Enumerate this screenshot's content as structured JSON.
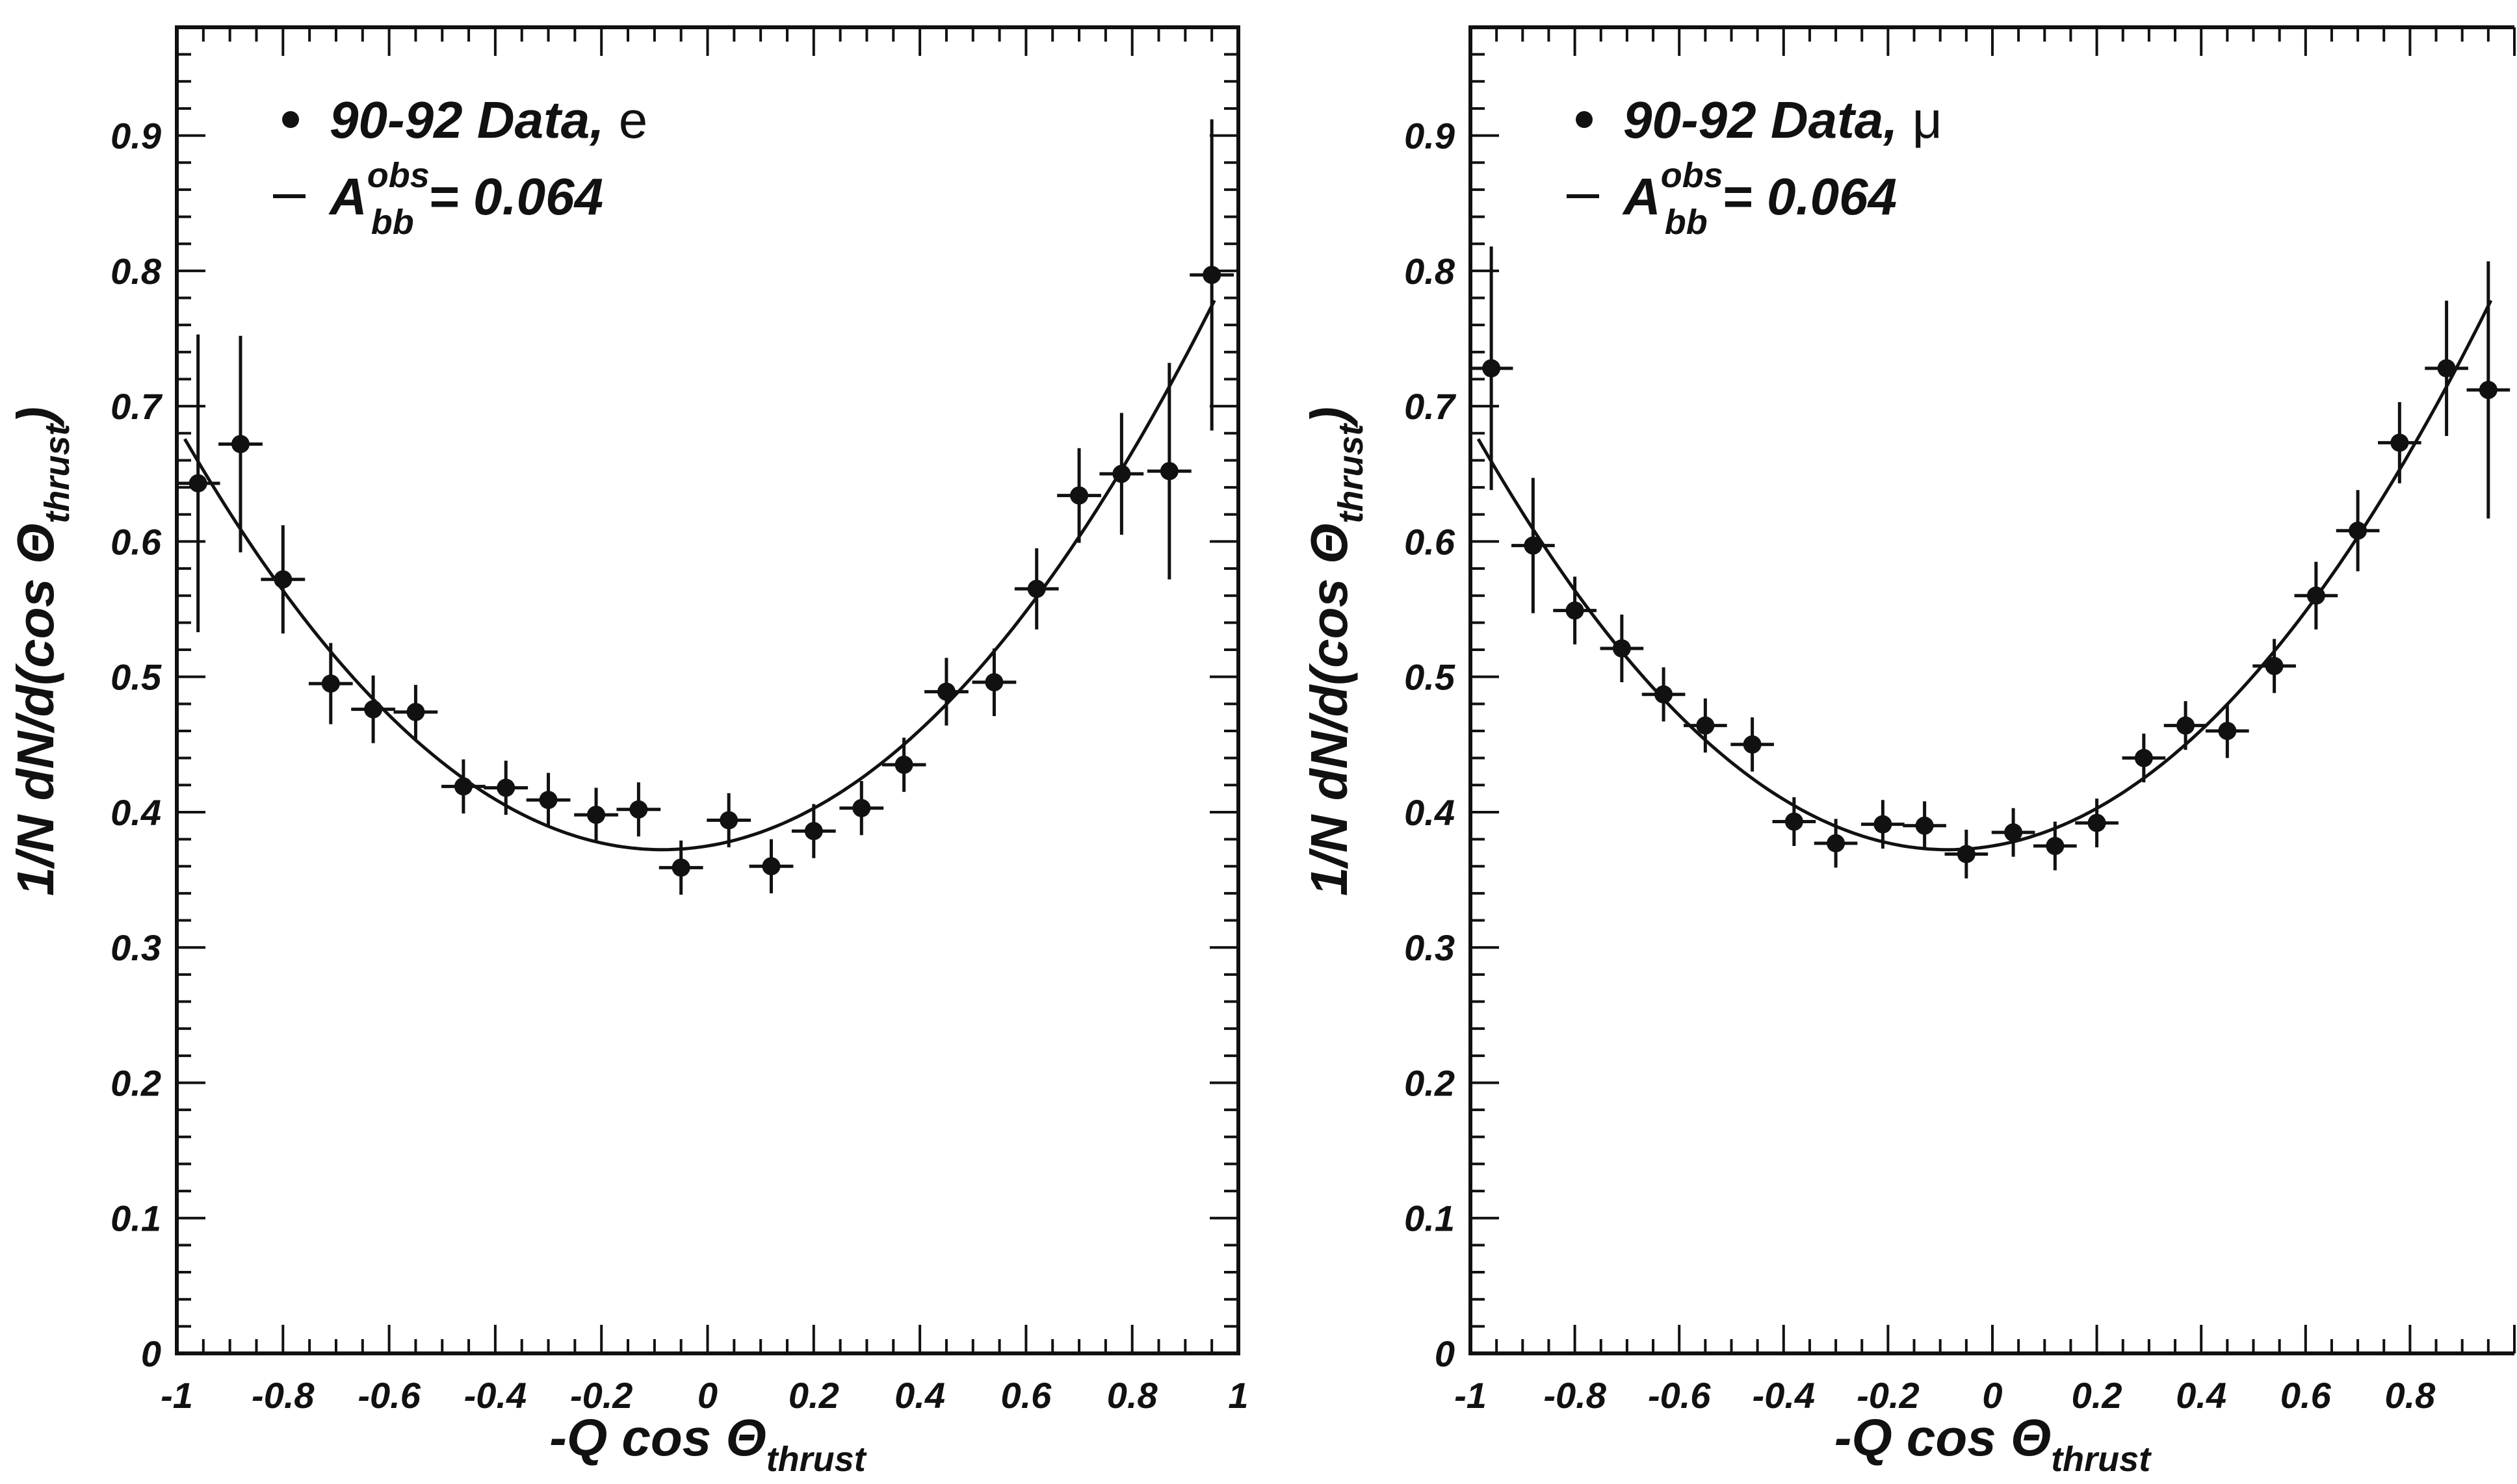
{
  "chart_data": [
    {
      "type": "scatter",
      "x": [
        -0.96,
        -0.88,
        -0.8,
        -0.71,
        -0.63,
        -0.55,
        -0.46,
        -0.38,
        -0.3,
        -0.21,
        -0.13,
        -0.05,
        0.04,
        0.12,
        0.2,
        0.29,
        0.37,
        0.45,
        0.54,
        0.62,
        0.7,
        0.78,
        0.87,
        0.95
      ],
      "series": [
        {
          "name": "90-92 Data, e",
          "values": [
            0.643,
            0.672,
            0.572,
            0.495,
            0.476,
            0.474,
            0.419,
            0.418,
            0.409,
            0.398,
            0.402,
            0.359,
            0.394,
            0.36,
            0.386,
            0.403,
            0.435,
            0.489,
            0.496,
            0.565,
            0.634,
            0.65,
            0.652,
            0.797
          ],
          "errors": [
            0.11,
            0.08,
            0.04,
            0.03,
            0.025,
            0.02,
            0.02,
            0.02,
            0.02,
            0.02,
            0.02,
            0.02,
            0.02,
            0.02,
            0.02,
            0.02,
            0.02,
            0.025,
            0.025,
            0.03,
            0.035,
            0.045,
            0.08,
            0.115
          ]
        },
        {
          "name": "A_bb^obs = 0.064",
          "type": "line",
          "asymmetry": 0.064
        }
      ],
      "legend": {
        "data_prefix": "90-92 Data, ",
        "data_flavor": "e",
        "fit_symbol": "A",
        "fit_sub": "bb",
        "fit_sup": "obs",
        "fit_value": " = 0.064"
      },
      "xlabel": {
        "main": "-Q cos Θ",
        "sub": "thrust"
      },
      "ylabel": {
        "main": "1/N dN/d(cos Θ",
        "sub": "thrust",
        "close": ")"
      },
      "xlim": [
        -1,
        1
      ],
      "ylim": [
        0,
        0.98
      ],
      "xticks": [
        "-1",
        "-0.8",
        "-0.6",
        "-0.4",
        "-0.2",
        "0",
        "0.2",
        "0.4",
        "0.6",
        "0.8",
        "1"
      ],
      "yticks": [
        "0",
        "0.1",
        "0.2",
        "0.3",
        "0.4",
        "0.5",
        "0.6",
        "0.7",
        "0.8",
        "0.9"
      ],
      "legend_position": "top-left",
      "grid": false
    },
    {
      "type": "scatter",
      "x": [
        -0.96,
        -0.88,
        -0.8,
        -0.71,
        -0.63,
        -0.55,
        -0.46,
        -0.38,
        -0.3,
        -0.21,
        -0.13,
        -0.05,
        0.04,
        0.12,
        0.2,
        0.29,
        0.37,
        0.45,
        0.54,
        0.62,
        0.7,
        0.78,
        0.87,
        0.95
      ],
      "series": [
        {
          "name": "90-92 Data, μ",
          "values": [
            0.728,
            0.597,
            0.549,
            0.521,
            0.487,
            0.464,
            0.45,
            0.393,
            0.377,
            0.391,
            0.39,
            0.369,
            0.385,
            0.375,
            0.392,
            0.44,
            0.464,
            0.46,
            0.508,
            0.56,
            0.608,
            0.673,
            0.728,
            0.712
          ],
          "errors": [
            0.09,
            0.05,
            0.025,
            0.025,
            0.02,
            0.02,
            0.02,
            0.018,
            0.018,
            0.018,
            0.018,
            0.018,
            0.018,
            0.018,
            0.018,
            0.018,
            0.018,
            0.02,
            0.02,
            0.025,
            0.03,
            0.03,
            0.05,
            0.095
          ]
        },
        {
          "name": "A_bb^obs = 0.064",
          "type": "line",
          "asymmetry": 0.064
        }
      ],
      "legend": {
        "data_prefix": "90-92 Data, ",
        "data_flavor": "μ",
        "fit_symbol": "A",
        "fit_sub": "bb",
        "fit_sup": "obs",
        "fit_value": " = 0.064"
      },
      "xlabel": {
        "main": "-Q cos Θ",
        "sub": "thrust"
      },
      "ylabel": {
        "main": "1/N dN/d(cos Θ",
        "sub": "thrust",
        "close": ")"
      },
      "xlim": [
        -1,
        1
      ],
      "ylim": [
        0,
        0.98
      ],
      "xticks": [
        "-1",
        "-0.8",
        "-0.6",
        "-0.4",
        "-0.2",
        "0",
        "0.2",
        "0.4",
        "0.6",
        "0.8"
      ],
      "yticks": [
        "0",
        "0.1",
        "0.2",
        "0.3",
        "0.4",
        "0.5",
        "0.6",
        "0.7",
        "0.8",
        "0.9"
      ],
      "legend_position": "top-left",
      "grid": false
    }
  ]
}
